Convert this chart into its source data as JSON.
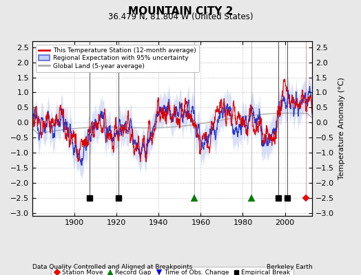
{
  "title": "MOUNTAIN CITY 2",
  "subtitle": "36.479 N, 81.804 W (United States)",
  "ylabel": "Temperature Anomaly (°C)",
  "xlabel_left": "Data Quality Controlled and Aligned at Breakpoints",
  "xlabel_right": "Berkeley Earth",
  "ylim": [
    -3.1,
    2.7
  ],
  "yticks": [
    -3,
    -2.5,
    -2,
    -1.5,
    -1,
    -0.5,
    0,
    0.5,
    1,
    1.5,
    2,
    2.5
  ],
  "year_start": 1880,
  "year_end": 2013,
  "x_ticks": [
    1900,
    1920,
    1940,
    1960,
    1980,
    2000
  ],
  "station_moves": [
    2010
  ],
  "record_gaps": [
    1957,
    1984
  ],
  "obs_changes": [],
  "emp_breaks": [
    1907,
    1921,
    1997,
    2001
  ],
  "marker_y": -2.5,
  "bg_color": "#e8e8e8",
  "plot_bg": "#ffffff",
  "grid_color": "#cccccc",
  "red_color": "#dd0000",
  "blue_color": "#2233cc",
  "band_color": "#aabbee",
  "gray_color": "#aaaaaa",
  "seed": 12345
}
